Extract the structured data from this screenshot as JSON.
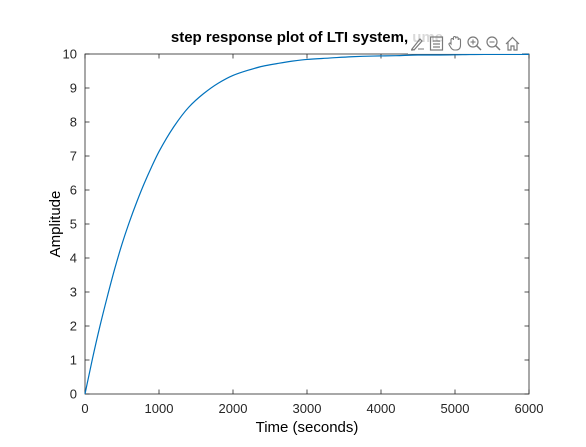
{
  "chart_data": {
    "type": "line",
    "title": "step response plot of LTI system, ume",
    "xlabel": "Time (seconds)",
    "ylabel": "Amplitude",
    "xlim": [
      0,
      6000
    ],
    "ylim": [
      0,
      10
    ],
    "xticks": [
      0,
      1000,
      2000,
      3000,
      4000,
      5000,
      6000
    ],
    "yticks": [
      0,
      1,
      2,
      3,
      4,
      5,
      6,
      7,
      8,
      9,
      10
    ],
    "grid": false,
    "series": [
      {
        "color": "#0072BD",
        "x": [
          0,
          100,
          200,
          300,
          400,
          500,
          600,
          700,
          800,
          900,
          1000,
          1200,
          1400,
          1600,
          1800,
          2000,
          2200,
          2400,
          2600,
          2800,
          3000,
          3300,
          3600,
          3900,
          4200,
          4500,
          4800,
          5100,
          5400,
          5700,
          6000
        ],
        "y": [
          0,
          1.03,
          1.98,
          2.85,
          3.67,
          4.41,
          5.06,
          5.65,
          6.19,
          6.68,
          7.13,
          7.86,
          8.43,
          8.83,
          9.14,
          9.37,
          9.52,
          9.64,
          9.72,
          9.79,
          9.84,
          9.88,
          9.92,
          9.94,
          9.95,
          9.97,
          9.97,
          9.98,
          9.99,
          9.99,
          9.99
        ]
      }
    ]
  },
  "toolbar": {
    "icons": [
      "brush-icon",
      "legend-icon",
      "pan-icon",
      "zoom-in-icon",
      "zoom-out-icon",
      "home-icon"
    ]
  }
}
